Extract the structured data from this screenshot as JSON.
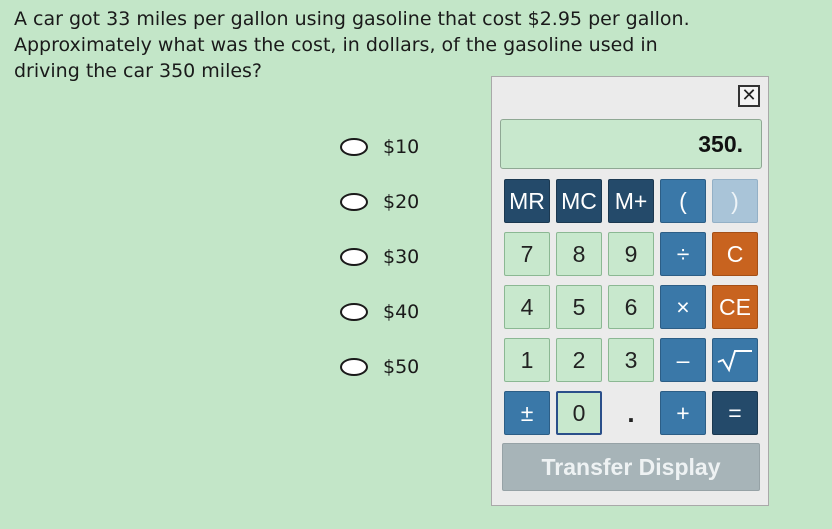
{
  "question": {
    "text": "A car got 33 miles per gallon using gasoline that cost $2.95 per gallon.\nApproximately what was the cost, in dollars, of the gasoline used in\ndriving the car 350 miles?"
  },
  "choices": [
    "$10",
    "$20",
    "$30",
    "$40",
    "$50"
  ],
  "calculator": {
    "close_label": "✕",
    "display_value": "350.",
    "keys": {
      "mr": "MR",
      "mc": "MC",
      "mplus": "M+",
      "lparen": "(",
      "rparen": ")",
      "k7": "7",
      "k8": "8",
      "k9": "9",
      "divide": "÷",
      "clear": "C",
      "k4": "4",
      "k5": "5",
      "k6": "6",
      "multiply": "×",
      "clear_entry": "CE",
      "k1": "1",
      "k2": "2",
      "k3": "3",
      "minus": "–",
      "plusminus": "±",
      "k0": "0",
      "decimal": ".",
      "plus": "+",
      "equals": "=",
      "transfer": "Transfer Display"
    },
    "colors": {
      "memory": "#244a6a",
      "operator": "#3a78a8",
      "clear": "#c8631f",
      "number": "#c8e8cd",
      "disabled": "#a9c4d8"
    }
  }
}
